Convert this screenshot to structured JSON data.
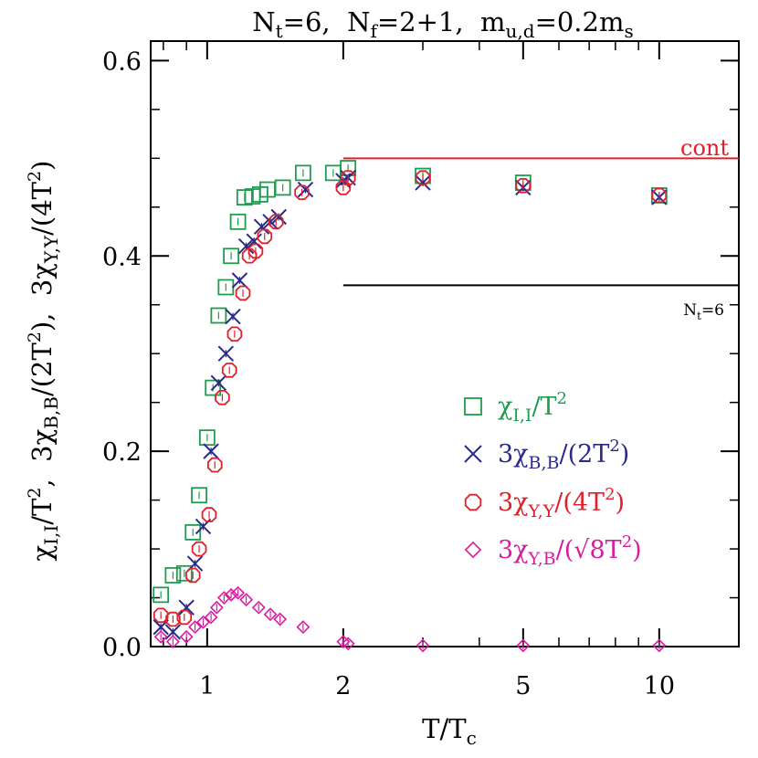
{
  "colors": {
    "green": "#1f9d4f",
    "blue": "#2a2a8c",
    "red": "#e0202a",
    "magenta": "#d81ca0",
    "black": "#000000"
  },
  "chart_data": {
    "type": "scatter",
    "title": "N_t=6,  N_f=2+1,  m_u,d=0.2m_s",
    "title_parts": {
      "Nt": "N",
      "Nt_sub": "t",
      "Nt_val": "=6,  ",
      "Nf": "N",
      "Nf_sub": "f",
      "Nf_val": "=2+1,  ",
      "m": "m",
      "m_sub": "u,d",
      "m_val": "=0.2m",
      "ms_sub": "s"
    },
    "xlabel": "T/T_c",
    "xlabel_parts": {
      "main": "T/T",
      "sub": "c"
    },
    "ylabel": "χ_I,I/T², 3χ_B,B/(2T²), 3χ_Y,Y/(4T²)",
    "x_scale": "log",
    "xlim": [
      0.75,
      15
    ],
    "ylim": [
      0.0,
      0.62
    ],
    "x_ticks": [
      1,
      2,
      5,
      10
    ],
    "x_tick_labels": [
      "1",
      "2",
      "5",
      "10"
    ],
    "y_ticks": [
      0.0,
      0.2,
      0.4,
      0.6
    ],
    "y_tick_labels": [
      "0.0",
      "0.2",
      "0.4",
      "0.6"
    ],
    "grid": false,
    "legend_position": "center-right",
    "reference_lines": [
      {
        "label": "cont",
        "y": 0.5,
        "x_start": 2.0,
        "x_end": 15,
        "color": "#e0202a"
      },
      {
        "label": "N_t=6",
        "label_main": "N",
        "label_sub": "t",
        "label_val": "=6",
        "y": 0.37,
        "x_start": 2.0,
        "x_end": 15,
        "color": "#000000"
      }
    ],
    "series": [
      {
        "name": "χ_I,I/T²",
        "legend": {
          "prefix": "",
          "chi": "χ",
          "sub": "I,I",
          "rest": "/T",
          "sup": "2",
          "tail": ""
        },
        "marker": "square",
        "color": "#1f9d4f",
        "x": [
          0.79,
          0.84,
          0.89,
          0.93,
          0.96,
          1.0,
          1.03,
          1.06,
          1.1,
          1.13,
          1.17,
          1.21,
          1.26,
          1.31,
          1.36,
          1.47,
          1.63,
          1.9,
          2.05,
          3.0,
          5.0,
          10.0
        ],
        "y": [
          0.053,
          0.073,
          0.075,
          0.117,
          0.155,
          0.214,
          0.265,
          0.339,
          0.368,
          0.4,
          0.435,
          0.46,
          0.461,
          0.463,
          0.468,
          0.47,
          0.485,
          0.485,
          0.49,
          0.482,
          0.475,
          0.462
        ]
      },
      {
        "name": "3χ_B,B/(2T²)",
        "legend": {
          "prefix": "3",
          "chi": "χ",
          "sub": "B,B",
          "rest": "/(2T",
          "sup": "2",
          "tail": ")"
        },
        "marker": "cross",
        "color": "#2a2a8c",
        "x": [
          0.79,
          0.84,
          0.9,
          0.94,
          0.98,
          1.02,
          1.06,
          1.1,
          1.14,
          1.18,
          1.22,
          1.27,
          1.32,
          1.38,
          1.44,
          1.65,
          2.0,
          2.05,
          3.0,
          5.0,
          10.0
        ],
        "y": [
          0.02,
          0.015,
          0.04,
          0.085,
          0.123,
          0.2,
          0.27,
          0.3,
          0.338,
          0.375,
          0.41,
          0.415,
          0.43,
          0.435,
          0.44,
          0.468,
          0.477,
          0.48,
          0.475,
          0.47,
          0.46
        ]
      },
      {
        "name": "3χ_Y,Y/(4T²)",
        "legend": {
          "prefix": "3",
          "chi": "χ",
          "sub": "Y,Y",
          "rest": "/(4T",
          "sup": "2",
          "tail": ")"
        },
        "marker": "octagon",
        "color": "#e0202a",
        "x": [
          0.79,
          0.84,
          0.89,
          0.93,
          0.96,
          1.01,
          1.04,
          1.08,
          1.12,
          1.15,
          1.2,
          1.24,
          1.28,
          1.34,
          1.42,
          1.62,
          2.0,
          2.05,
          3.0,
          5.0,
          10.0
        ],
        "y": [
          0.032,
          0.028,
          0.03,
          0.073,
          0.1,
          0.135,
          0.186,
          0.255,
          0.283,
          0.32,
          0.362,
          0.4,
          0.405,
          0.42,
          0.435,
          0.465,
          0.47,
          0.48,
          0.48,
          0.472,
          0.462
        ]
      },
      {
        "name": "3χ_Y,B/(√8T²)",
        "legend": {
          "prefix": "3",
          "chi": "χ",
          "sub": "Y,B",
          "rest": "/(√8T",
          "sup": "2",
          "tail": ")"
        },
        "marker": "diamond",
        "color": "#d81ca0",
        "x": [
          0.79,
          0.84,
          0.9,
          0.94,
          0.98,
          1.02,
          1.05,
          1.09,
          1.13,
          1.17,
          1.22,
          1.3,
          1.38,
          1.45,
          1.63,
          2.0,
          2.05,
          3.0,
          5.0,
          10.0
        ],
        "y": [
          0.01,
          0.005,
          0.01,
          0.02,
          0.025,
          0.03,
          0.04,
          0.05,
          0.053,
          0.055,
          0.048,
          0.04,
          0.033,
          0.028,
          0.02,
          0.005,
          0.003,
          0.001,
          0.001,
          0.001
        ]
      }
    ]
  }
}
